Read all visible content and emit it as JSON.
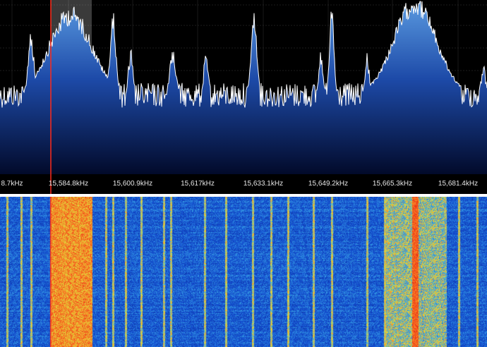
{
  "frequency_axis": {
    "labels": [
      "8.7kHz",
      "15,584.8kHz",
      "15,600.9kHz",
      "15,617kHz",
      "15,633.1kHz",
      "15,649.2kHz",
      "15,665.3kHz",
      "15,681.4kHz"
    ]
  },
  "vfo": {
    "passband_color": "#cfcfcf",
    "marker_color": "#ff2a1a"
  },
  "colors": {
    "background": "#000000",
    "grid": "#333333",
    "trace": "#ffffff",
    "fill_top": "#4f8fd6",
    "fill_bottom": "#081c66",
    "waterfall_base": "#0a2fb0",
    "waterfall_hot": "#ff5a1a"
  }
}
